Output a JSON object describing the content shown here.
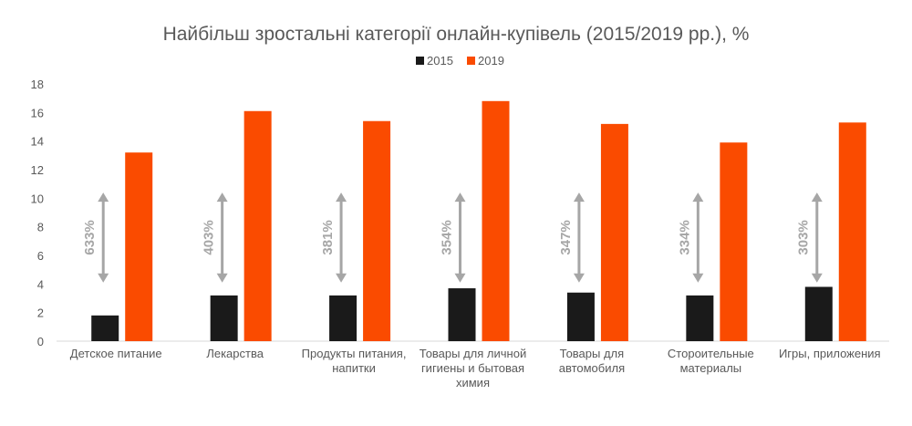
{
  "chart_data": {
    "type": "bar",
    "title": "Найбільш зростальні категорії онлайн-купівель (2015/2019 рр.), %",
    "xlabel": "",
    "ylabel": "",
    "ylim": [
      0,
      18
    ],
    "yticks": [
      "0",
      "2",
      "4",
      "6",
      "8",
      "10",
      "12",
      "14",
      "16",
      "18"
    ],
    "legend_position": "top-center",
    "categories": [
      [
        "Детское питание"
      ],
      [
        "Лекарства"
      ],
      [
        "Продукты питания,",
        "напитки"
      ],
      [
        "Товары для личной",
        "гигиены и бытовая",
        "химия"
      ],
      [
        "Товары для",
        "автомобиля"
      ],
      [
        "Стороительные",
        "материалы"
      ],
      [
        "Игры, приложения"
      ]
    ],
    "series": [
      {
        "name": "2015",
        "color": "#1a1a1a",
        "values": [
          1.8,
          3.2,
          3.2,
          3.7,
          3.4,
          3.2,
          3.8
        ]
      },
      {
        "name": "2019",
        "color": "#fa4b00",
        "values": [
          13.2,
          16.1,
          15.4,
          16.8,
          15.2,
          13.9,
          15.3
        ]
      }
    ],
    "annotations": [
      "633%",
      "403%",
      "381%",
      "354%",
      "347%",
      "334%",
      "303%"
    ],
    "annotation_arrow_range": [
      4.1,
      10.4
    ],
    "annotation_color": "#a6a6a6"
  }
}
